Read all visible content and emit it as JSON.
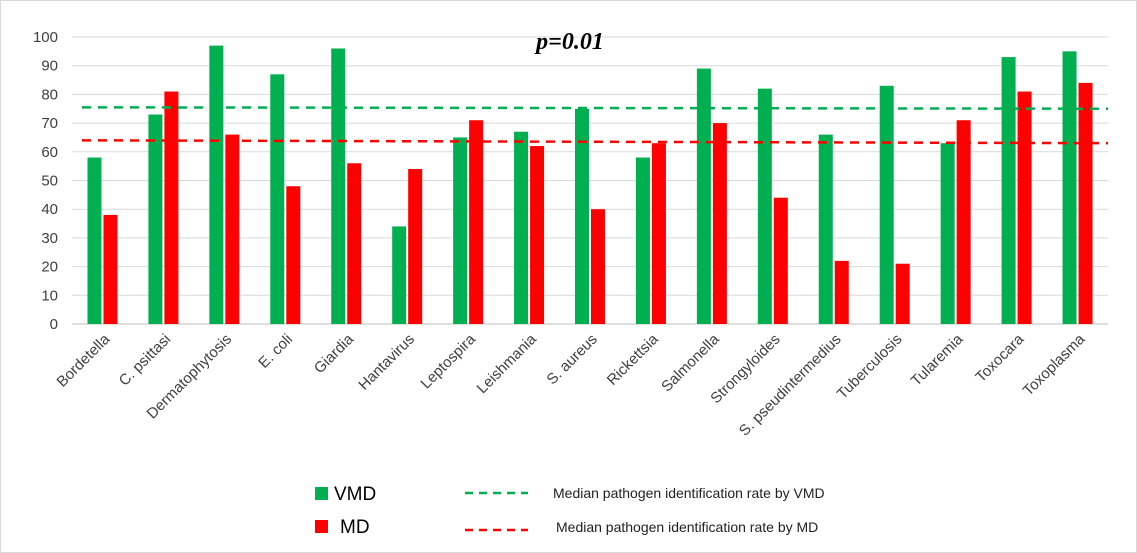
{
  "chart_data": {
    "type": "bar",
    "annotation": "p=0.01",
    "categories": [
      "Bordetella",
      "C. psittasi",
      "Dermatophytosis",
      "E. coli",
      "Giardia",
      "Hantavirus",
      "Leptospira",
      "Leishmania",
      "S. aureus",
      "Rickettsia",
      "Salmonella",
      "Strongyloides",
      "S. pseudintermedius",
      "Tuberculosis",
      "Tularemia",
      "Toxocara",
      "Toxoplasma"
    ],
    "series": [
      {
        "name": "VMD",
        "color": "#00b050",
        "values": [
          58,
          73,
          97,
          87,
          96,
          34,
          65,
          67,
          75,
          58,
          89,
          82,
          66,
          83,
          63,
          93,
          95
        ]
      },
      {
        "name": "MD",
        "color": "#ff0000",
        "values": [
          38,
          81,
          66,
          48,
          56,
          54,
          71,
          62,
          40,
          63,
          70,
          44,
          22,
          21,
          71,
          81,
          84
        ]
      }
    ],
    "reference_lines": [
      {
        "name": "Median pathogen identification rate by VMD",
        "color": "#00b050",
        "y_start": 75.5,
        "y_end": 75,
        "style": "dashed"
      },
      {
        "name": "Median pathogen identification rate by MD",
        "color": "#ff0000",
        "y_start": 64,
        "y_end": 63,
        "style": "dashed"
      }
    ],
    "yticks": [
      0,
      10,
      20,
      30,
      40,
      50,
      60,
      70,
      80,
      90,
      100
    ],
    "ylim": [
      0,
      100
    ],
    "grid": true,
    "legend_position": "bottom"
  }
}
